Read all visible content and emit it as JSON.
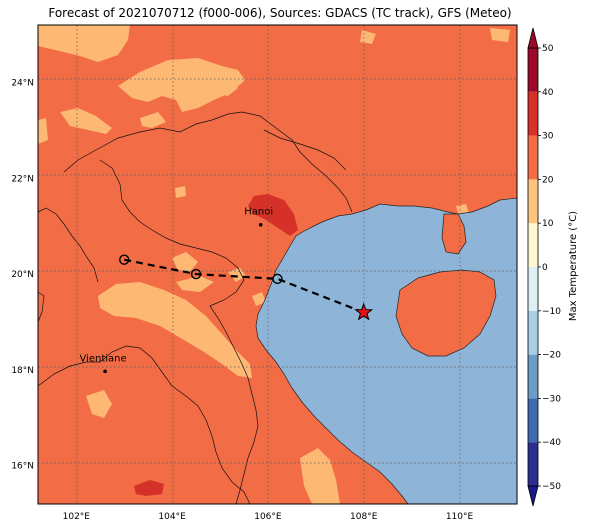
{
  "title": "Forecast of 2021070712 (f000-006), Sources: GDACS (TC track), GFS (Meteo)",
  "map": {
    "lon_range": [
      101.2,
      111.2
    ],
    "lat_range": [
      15.2,
      25.2
    ],
    "lon_ticks": [
      {
        "value": 102,
        "label": "102°E"
      },
      {
        "value": 104,
        "label": "104°E"
      },
      {
        "value": 106,
        "label": "106°E"
      },
      {
        "value": 108,
        "label": "108°E"
      },
      {
        "value": 110,
        "label": "110°E"
      }
    ],
    "lat_ticks": [
      {
        "value": 16,
        "label": "16°N"
      },
      {
        "value": 18,
        "label": "18°N"
      },
      {
        "value": 20,
        "label": "20°N"
      },
      {
        "value": 22,
        "label": "22°N"
      },
      {
        "value": 24,
        "label": "24°N"
      }
    ],
    "grid": "dotted",
    "cities": [
      {
        "name": "Hanoi",
        "lon": 105.85,
        "lat": 21.03
      },
      {
        "name": "Vientiane",
        "lon": 102.6,
        "lat": 17.97
      }
    ],
    "track": {
      "points": [
        {
          "lon": 103.0,
          "lat": 20.3
        },
        {
          "lon": 104.5,
          "lat": 20.0
        },
        {
          "lon": 106.2,
          "lat": 19.9
        },
        {
          "lon": 108.0,
          "lat": 19.2
        }
      ],
      "current_position_index": 3,
      "line_style": "dashed black",
      "marker": "open circle",
      "current_marker": "red star"
    }
  },
  "colorbar": {
    "label": "Max Temperature (°C)",
    "levels": [
      -50,
      -40,
      -30,
      -20,
      -10,
      0,
      10,
      20,
      30,
      40,
      50
    ],
    "colors": [
      "#2b2f8f",
      "#3f6aad",
      "#6c9bc6",
      "#a8cfe3",
      "#dff0f5",
      "#fff6d2",
      "#fdc67e",
      "#f26c45",
      "#d53128",
      "#9c0a2a"
    ],
    "extend": "both"
  },
  "colors": {
    "land_warm": "#f26c45",
    "land_cool": "#fdb874",
    "land_hot": "#d53128",
    "sea": "#8eb4d8"
  }
}
